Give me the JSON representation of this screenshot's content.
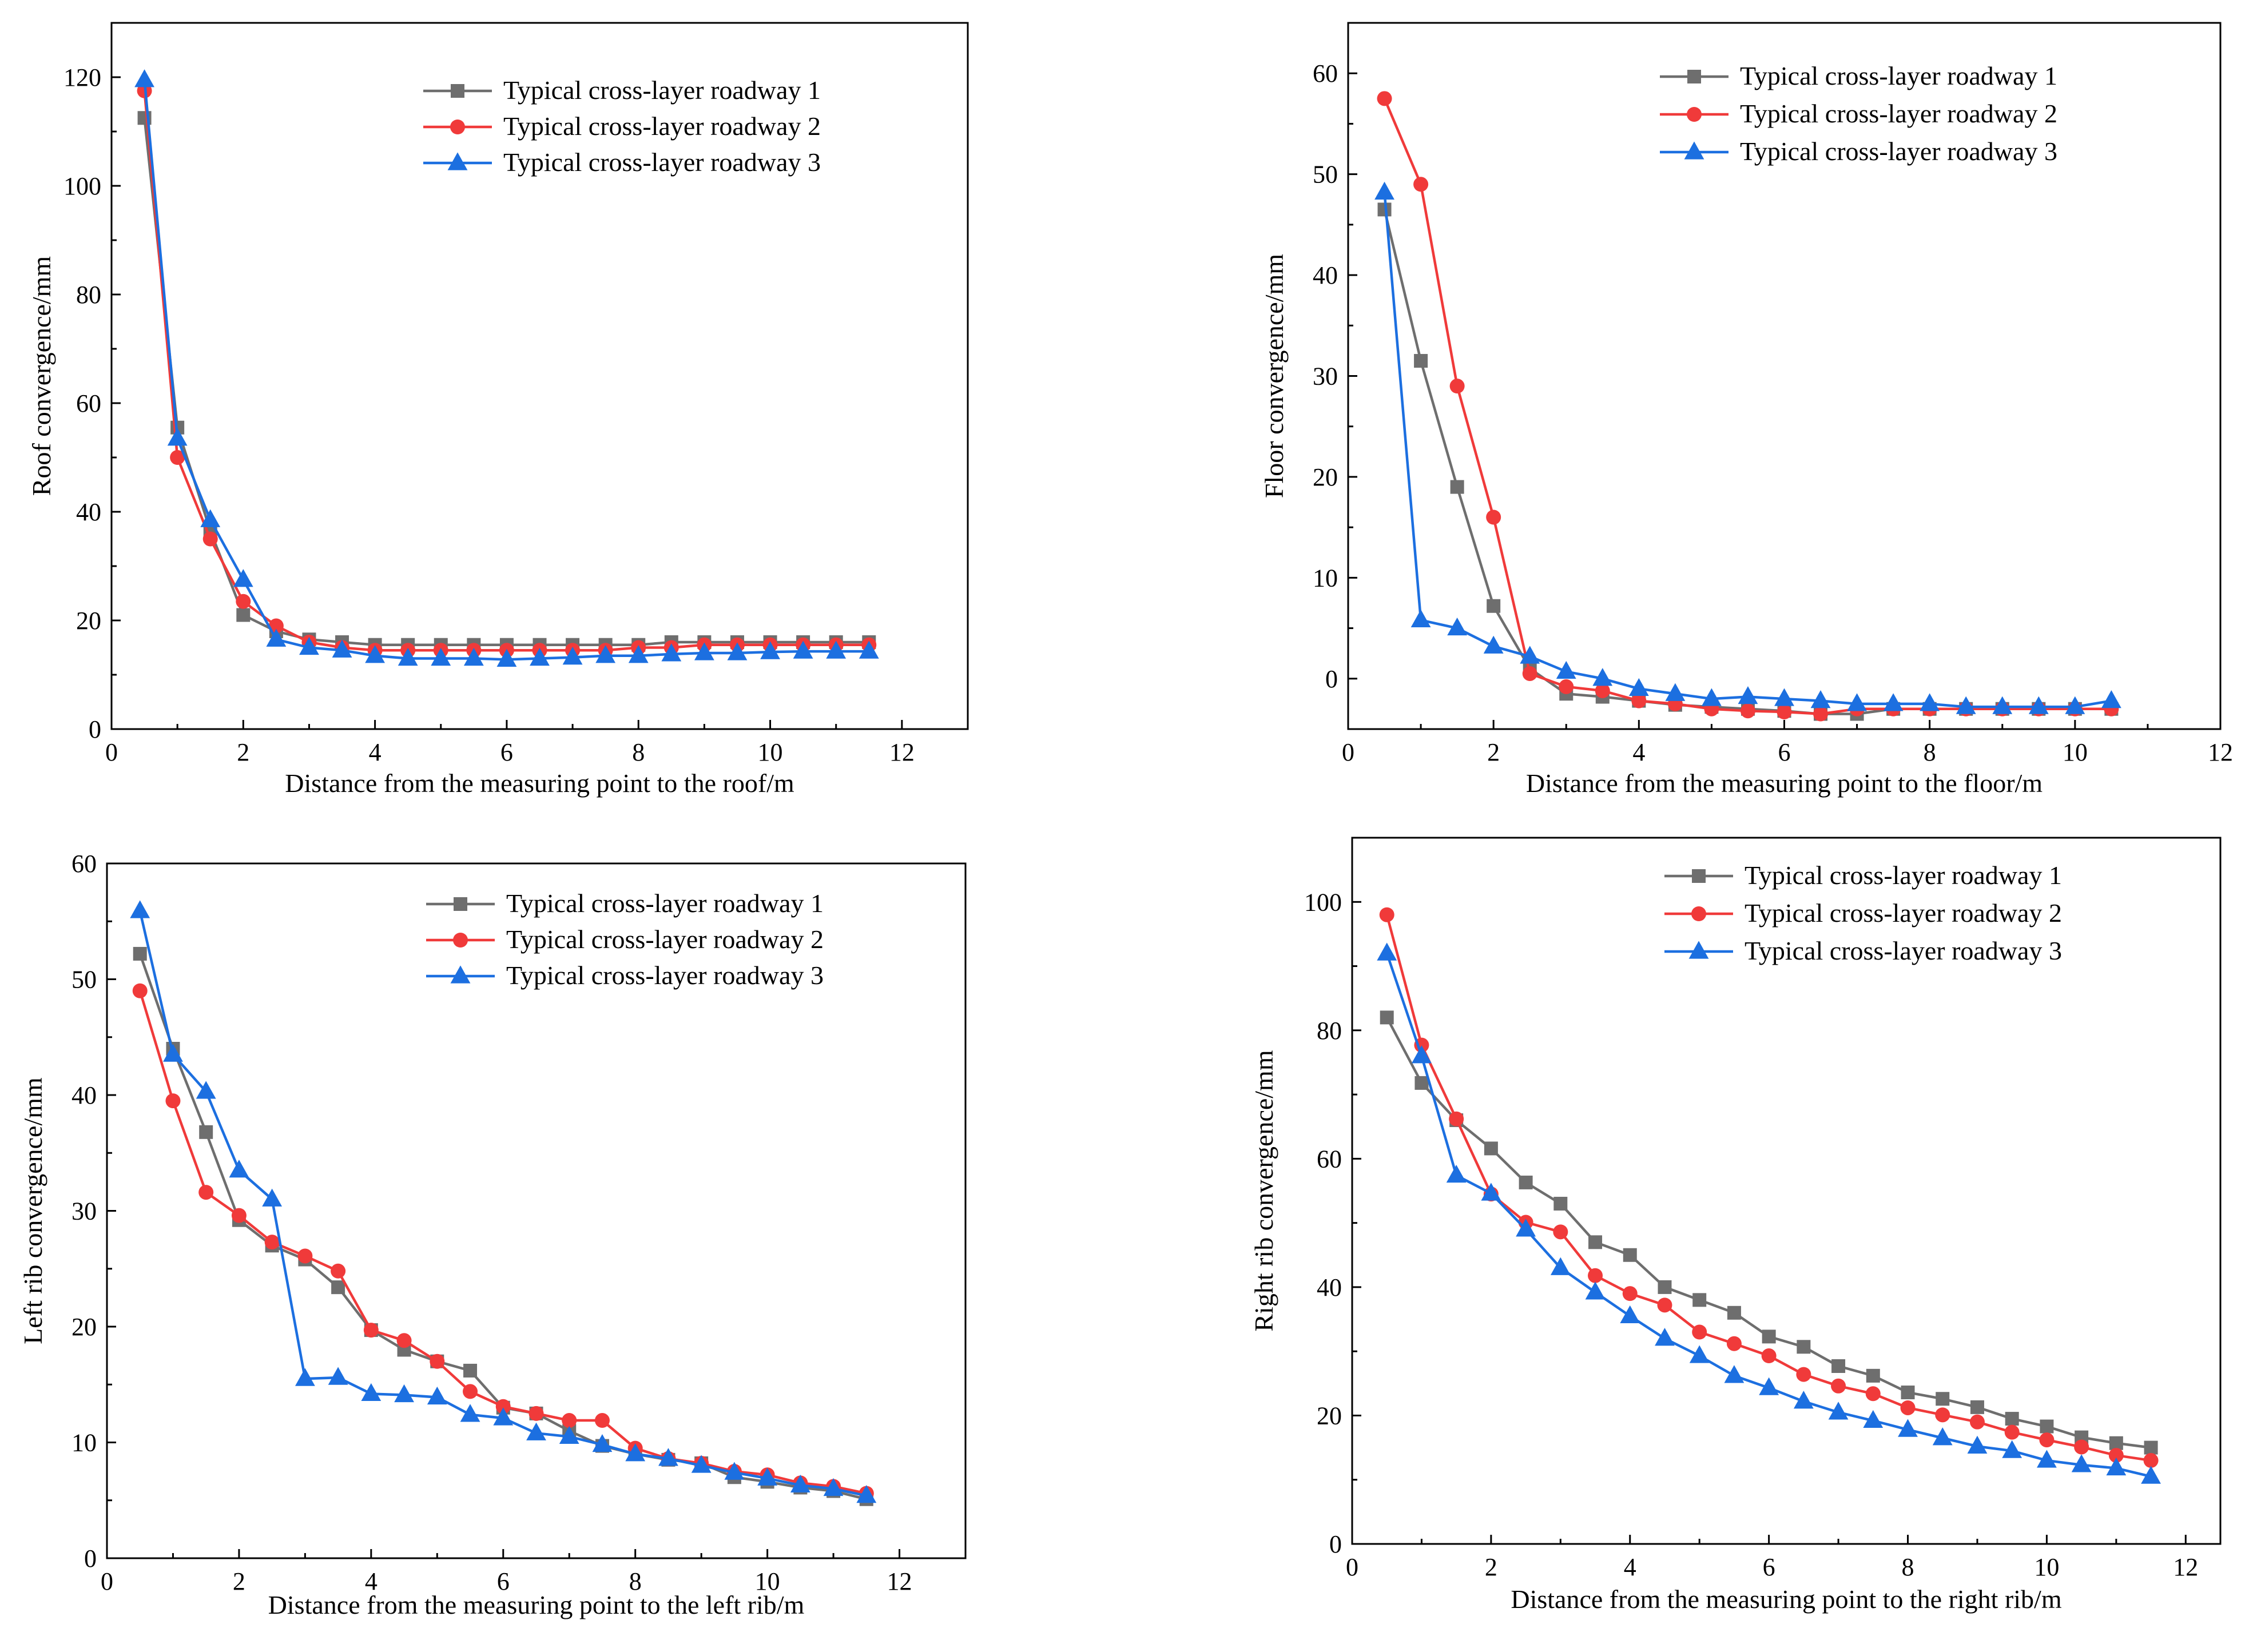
{
  "colors": {
    "series": [
      "#6e6e6e",
      "#f03a3a",
      "#1c6fe0"
    ],
    "axis": "#000000",
    "background": "#ffffff"
  },
  "legend_labels": [
    "Typical cross-layer roadway 1",
    "Typical cross-layer roadway 2",
    "Typical cross-layer roadway 3"
  ],
  "chart_data": [
    {
      "type": "line",
      "id": "roof",
      "xlabel": "Distance from the measuring point to the roof/m",
      "ylabel": "Roof convergence/mm",
      "xlim": [
        0,
        13
      ],
      "ylim": [
        0,
        130
      ],
      "xticks": [
        0,
        2,
        4,
        6,
        8,
        10,
        12
      ],
      "yticks": [
        0,
        20,
        40,
        60,
        80,
        100,
        120
      ],
      "legend_position": "top-right",
      "x": [
        0.5,
        1,
        1.5,
        2,
        2.5,
        3,
        3.5,
        4,
        4.5,
        5,
        5.5,
        6,
        6.5,
        7,
        7.5,
        8,
        8.5,
        9,
        9.5,
        10,
        10.5,
        11,
        11.5
      ],
      "series": [
        {
          "name": "Typical cross-layer roadway 1",
          "marker": "square",
          "values": [
            112.5,
            55.5,
            36.5,
            21,
            18,
            16.5,
            16,
            15.5,
            15.5,
            15.5,
            15.5,
            15.5,
            15.5,
            15.5,
            15.5,
            15.5,
            16,
            16,
            16,
            16,
            16,
            16,
            16
          ]
        },
        {
          "name": "Typical cross-layer roadway 2",
          "marker": "circle",
          "values": [
            117.5,
            50,
            35,
            23.5,
            19,
            16,
            15,
            14.5,
            14.5,
            14.5,
            14.5,
            14.5,
            14.5,
            14.5,
            14.5,
            15,
            15,
            15.5,
            15.5,
            15.5,
            15.5,
            15.5,
            15.5
          ]
        },
        {
          "name": "Typical cross-layer roadway 3",
          "marker": "triangle",
          "values": [
            119.5,
            53.5,
            38.5,
            27.5,
            16.5,
            15,
            14.5,
            13.5,
            13,
            13,
            13,
            12.8,
            13,
            13.2,
            13.5,
            13.5,
            13.8,
            14,
            14,
            14.2,
            14.3,
            14.3,
            14.3
          ]
        }
      ]
    },
    {
      "type": "line",
      "id": "floor",
      "xlabel": "Distance from the measuring point to the floor/m",
      "ylabel": "Floor convergence/mm",
      "xlim": [
        0,
        12
      ],
      "ylim": [
        -5,
        65
      ],
      "xticks": [
        0,
        2,
        4,
        6,
        8,
        10,
        12
      ],
      "yticks": [
        0,
        10,
        20,
        30,
        40,
        50,
        60
      ],
      "legend_position": "top-right",
      "x": [
        0.5,
        1,
        1.5,
        2,
        2.5,
        3,
        3.5,
        4,
        4.5,
        5,
        5.5,
        6,
        6.5,
        7,
        7.5,
        8,
        8.5,
        9,
        9.5,
        10,
        10.5
      ],
      "series": [
        {
          "name": "Typical cross-layer roadway 1",
          "marker": "square",
          "values": [
            46.5,
            31.5,
            19,
            7.2,
            1,
            -1.5,
            -1.8,
            -2.2,
            -2.6,
            -2.8,
            -3,
            -3.2,
            -3.5,
            -3.5,
            -3,
            -3,
            -3,
            -3,
            -3,
            -3,
            -3
          ]
        },
        {
          "name": "Typical cross-layer roadway 2",
          "marker": "circle",
          "values": [
            57.5,
            49,
            29,
            16,
            0.5,
            -0.8,
            -1.2,
            -2.2,
            -2.5,
            -3,
            -3.2,
            -3.3,
            -3.5,
            -3,
            -3,
            -3,
            -3,
            -3,
            -3,
            -3,
            -3
          ]
        },
        {
          "name": "Typical cross-layer roadway 3",
          "marker": "triangle",
          "values": [
            48.2,
            5.8,
            5,
            3.2,
            2.2,
            0.7,
            0,
            -1,
            -1.5,
            -2,
            -1.8,
            -2,
            -2.2,
            -2.5,
            -2.5,
            -2.5,
            -2.8,
            -2.8,
            -2.8,
            -2.8,
            -2.2
          ]
        }
      ]
    },
    {
      "type": "line",
      "id": "left-rib",
      "xlabel": "Distance from the measuring point to the left rib/m",
      "ylabel": "Left rib convergence/mm",
      "xlim": [
        0,
        13
      ],
      "ylim": [
        0,
        60
      ],
      "xticks": [
        0,
        2,
        4,
        6,
        8,
        10,
        12
      ],
      "yticks": [
        0,
        10,
        20,
        30,
        40,
        50,
        60
      ],
      "legend_position": "top-right",
      "x": [
        0.5,
        1,
        1.5,
        2,
        2.5,
        3,
        3.5,
        4,
        4.5,
        5,
        5.5,
        6,
        6.5,
        7,
        7.5,
        8,
        8.5,
        9,
        9.5,
        10,
        10.5,
        11,
        11.5
      ],
      "series": [
        {
          "name": "Typical cross-layer roadway 1",
          "marker": "square",
          "values": [
            52.2,
            44,
            36.8,
            29.2,
            27,
            25.8,
            23.4,
            19.7,
            18,
            17,
            16.2,
            13,
            12.5,
            11,
            9.7,
            9,
            8.5,
            8.2,
            7,
            6.6,
            6.1,
            5.8,
            5.1
          ]
        },
        {
          "name": "Typical cross-layer roadway 2",
          "marker": "circle",
          "values": [
            49,
            39.5,
            31.6,
            29.6,
            27.3,
            26.1,
            24.8,
            19.7,
            18.8,
            17,
            14.4,
            13.1,
            12.5,
            11.9,
            11.9,
            9.5,
            8.6,
            8.2,
            7.5,
            7.2,
            6.5,
            6.2,
            5.6
          ]
        },
        {
          "name": "Typical cross-layer roadway 3",
          "marker": "triangle",
          "values": [
            55.9,
            43.5,
            40.3,
            33.5,
            31,
            15.5,
            15.6,
            14.2,
            14.1,
            13.9,
            12.4,
            12.1,
            10.8,
            10.5,
            9.8,
            9,
            8.6,
            8,
            7.4,
            6.9,
            6.3,
            6,
            5.4
          ]
        }
      ]
    },
    {
      "type": "line",
      "id": "right-rib",
      "xlabel": "Distance from the measuring point to the right rib/m",
      "ylabel": "Right rib convergence/mm",
      "xlim": [
        0,
        12.5
      ],
      "ylim": [
        0,
        110
      ],
      "xticks": [
        0,
        2,
        4,
        6,
        8,
        10,
        12
      ],
      "yticks": [
        0,
        20,
        40,
        60,
        80,
        100
      ],
      "legend_position": "top-right",
      "x": [
        0.5,
        1,
        1.5,
        2,
        2.5,
        3,
        3.5,
        4,
        4.5,
        5,
        5.5,
        6,
        6.5,
        7,
        7.5,
        8,
        8.5,
        9,
        9.5,
        10,
        10.5,
        11,
        11.5
      ],
      "series": [
        {
          "name": "Typical cross-layer roadway 1",
          "marker": "square",
          "values": [
            82,
            71.8,
            66,
            61.6,
            56.3,
            53,
            47,
            45,
            40,
            38,
            36,
            32.3,
            30.7,
            27.7,
            26.2,
            23.6,
            22.6,
            21.3,
            19.5,
            18.3,
            16.6,
            15.7,
            15
          ]
        },
        {
          "name": "Typical cross-layer roadway 2",
          "marker": "circle",
          "values": [
            98,
            77.7,
            66.2,
            54.5,
            50.1,
            48.6,
            41.8,
            39,
            37.2,
            33,
            31.2,
            29.3,
            26.4,
            24.6,
            23.4,
            21.2,
            20.1,
            19,
            17.4,
            16.2,
            15.1,
            13.8,
            13
          ]
        },
        {
          "name": "Typical cross-layer roadway 3",
          "marker": "triangle",
          "values": [
            92,
            76,
            57.4,
            54.6,
            49,
            43,
            39.2,
            35.5,
            32,
            29.3,
            26.2,
            24.3,
            22.2,
            20.5,
            19.2,
            17.8,
            16.5,
            15.2,
            14.5,
            13,
            12.3,
            11.8,
            10.5
          ]
        }
      ]
    }
  ]
}
